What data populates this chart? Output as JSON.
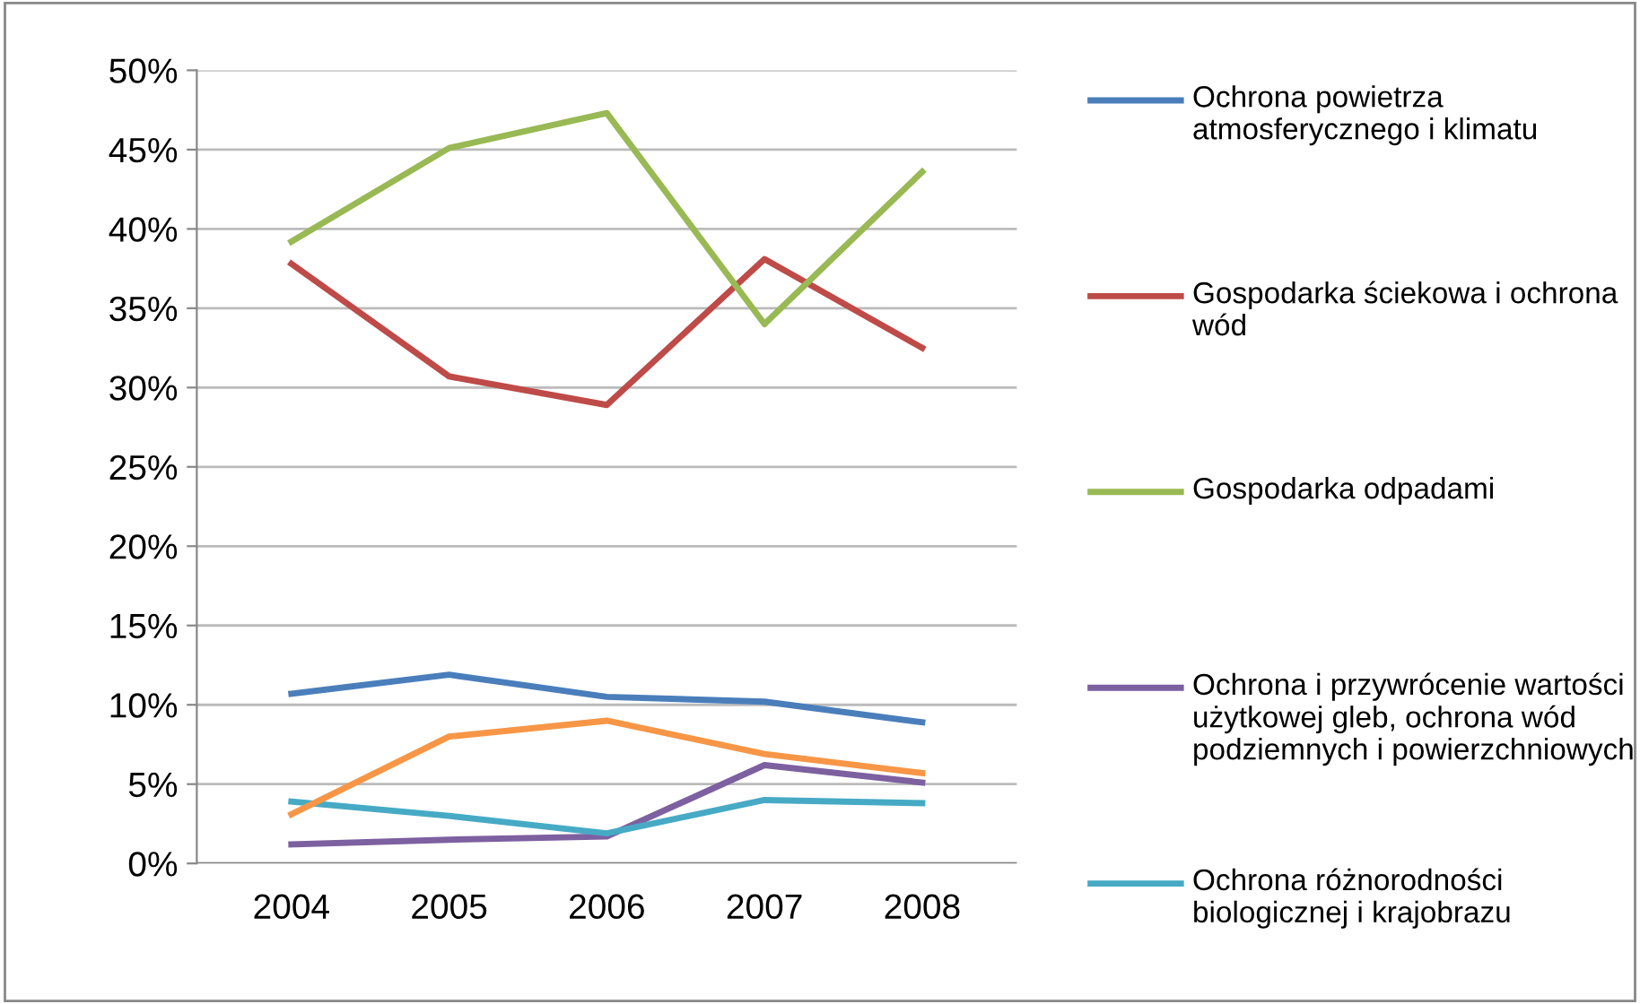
{
  "chart_data": {
    "type": "line",
    "categories": [
      "2004",
      "2005",
      "2006",
      "2007",
      "2008"
    ],
    "ylim": [
      0,
      50
    ],
    "yticks": [
      {
        "value": 0,
        "label": "0%"
      },
      {
        "value": 5,
        "label": "5%"
      },
      {
        "value": 10,
        "label": "10%"
      },
      {
        "value": 15,
        "label": "15%"
      },
      {
        "value": 20,
        "label": "20%"
      },
      {
        "value": 25,
        "label": "25%"
      },
      {
        "value": 30,
        "label": "30%"
      },
      {
        "value": 35,
        "label": "35%"
      },
      {
        "value": 40,
        "label": "40%"
      },
      {
        "value": 45,
        "label": "45%"
      },
      {
        "value": 50,
        "label": "50%"
      }
    ],
    "grid": "y",
    "legend": "right",
    "marker": "none",
    "series": [
      {
        "name": "Ochrona powietrza atmosferycznego i klimatu",
        "color": "#4a7ebb",
        "values": [
          10.7,
          11.9,
          10.5,
          10.2,
          8.9
        ]
      },
      {
        "name": "Gospodarka ściekowa i ochrona wód",
        "color": "#be4b48",
        "values": [
          37.8,
          30.7,
          28.9,
          38.1,
          32.5
        ]
      },
      {
        "name": "Gospodarka odpadami",
        "color": "#98b954",
        "values": [
          39.2,
          45.1,
          47.3,
          34.0,
          43.6
        ]
      },
      {
        "name": "Ochrona i przywrócenie wartości użytkowej gleb, ochrona wód podziemnych i powierzchniowych",
        "color": "#7d60a0",
        "values": [
          1.2,
          1.5,
          1.7,
          6.2,
          5.1
        ]
      },
      {
        "name": "Ochrona różnorodności biologicznej i krajobrazu",
        "color": "#46aac5",
        "values": [
          3.9,
          3.0,
          1.9,
          4.0,
          3.8
        ]
      },
      {
        "color": "#f79646",
        "values": [
          3.1,
          8.0,
          9.0,
          6.9,
          5.7
        ]
      }
    ]
  }
}
